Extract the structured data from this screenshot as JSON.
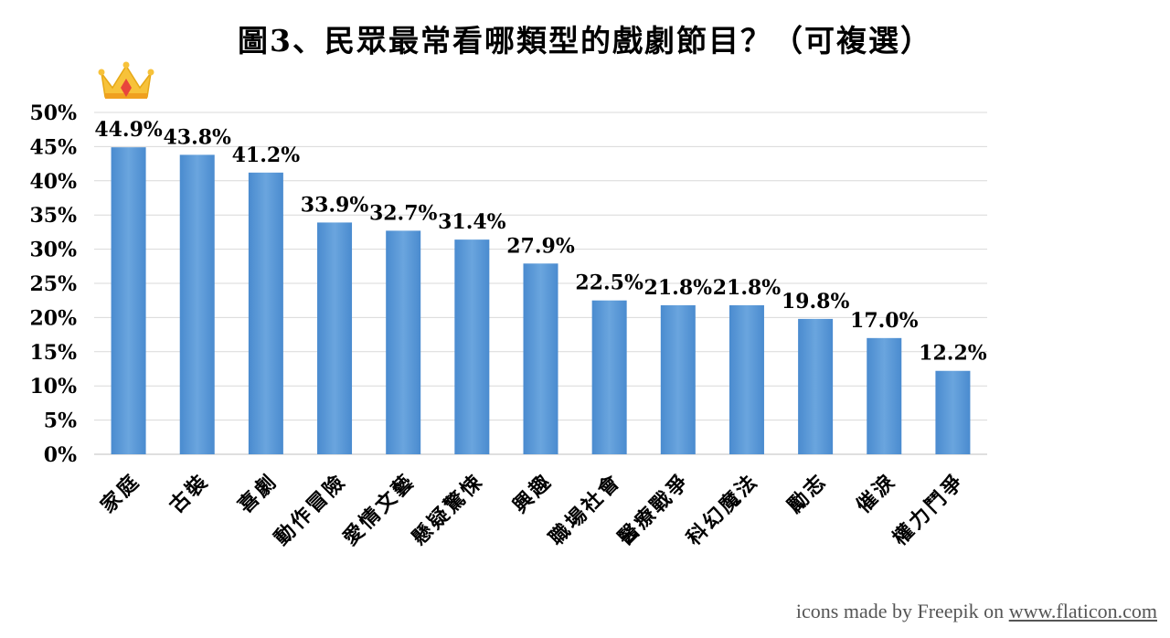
{
  "credit": {
    "text": "icons made by Freepik on ",
    "link": "www.flaticon.com"
  },
  "chart_data": {
    "type": "bar",
    "title": "圖3、民眾最常看哪類型的戲劇節目？（可複選）",
    "categories": [
      "家庭",
      "古裝",
      "喜劇",
      "動作冒險",
      "愛情文藝",
      "懸疑驚悚",
      "興趣",
      "職場社會",
      "醫療戰爭",
      "科幻魔法",
      "勵志",
      "催淚",
      "權力鬥爭"
    ],
    "values": [
      44.9,
      43.8,
      41.2,
      33.9,
      32.7,
      31.4,
      27.9,
      22.5,
      21.8,
      21.8,
      19.8,
      17.0,
      12.2
    ],
    "value_labels": [
      "44.9%",
      "43.8%",
      "41.2%",
      "33.9%",
      "32.7%",
      "31.4%",
      "27.9%",
      "22.5%",
      "21.8%",
      "21.8%",
      "19.8%",
      "17.0%",
      "12.2%"
    ],
    "yticks": [
      "0%",
      "5%",
      "10%",
      "15%",
      "20%",
      "25%",
      "30%",
      "35%",
      "40%",
      "45%",
      "50%"
    ],
    "ylim": [
      0,
      50
    ],
    "grid": true,
    "bar_color": "#5b9bd5",
    "highlight_icon": "crown-icon"
  }
}
